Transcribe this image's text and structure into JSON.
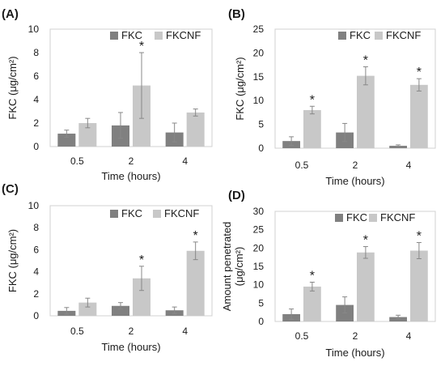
{
  "colors": {
    "FKC": "#808080",
    "FKCNF": "#c8c8c8",
    "axis": "#d0d0d0",
    "error": "#888888",
    "text": "#1a1a1a"
  },
  "chart_data": [
    {
      "panel": "(A)",
      "type": "bar",
      "categories": [
        "0.5",
        "2",
        "4"
      ],
      "series": [
        {
          "name": "FKC",
          "values": [
            1.1,
            1.8,
            1.2
          ],
          "errors": [
            0.3,
            1.1,
            0.8
          ]
        },
        {
          "name": "FKCNF",
          "values": [
            2.0,
            5.2,
            2.9
          ],
          "errors": [
            0.4,
            2.8,
            0.3
          ]
        }
      ],
      "significance": [
        "",
        "*",
        ""
      ],
      "ylabel": "FKC (μg/cm²)",
      "xlabel": "Time (hours)",
      "ylim": [
        0,
        10
      ],
      "yticks": [
        "0",
        "2",
        "4",
        "6",
        "8",
        "10"
      ],
      "legend": "top-right"
    },
    {
      "panel": "(B)",
      "type": "bar",
      "categories": [
        "0.5",
        "2",
        "4"
      ],
      "series": [
        {
          "name": "FKC",
          "values": [
            1.5,
            3.3,
            0.5
          ],
          "errors": [
            0.9,
            1.9,
            0.2
          ]
        },
        {
          "name": "FKCNF",
          "values": [
            8.0,
            15.2,
            13.3
          ],
          "errors": [
            0.8,
            1.9,
            1.3
          ]
        }
      ],
      "significance": [
        "*",
        "*",
        "*"
      ],
      "ylabel": "FKC (μg/cm²)",
      "xlabel": "Time (hours)",
      "ylim": [
        0,
        25
      ],
      "yticks": [
        "0",
        "5",
        "10",
        "15",
        "20",
        "25"
      ],
      "legend": "top-right"
    },
    {
      "panel": "(C)",
      "type": "bar",
      "categories": [
        "0.5",
        "2",
        "4"
      ],
      "series": [
        {
          "name": "FKC",
          "values": [
            0.45,
            0.9,
            0.5
          ],
          "errors": [
            0.3,
            0.3,
            0.3
          ]
        },
        {
          "name": "FKCNF",
          "values": [
            1.2,
            3.4,
            5.9
          ],
          "errors": [
            0.4,
            1.1,
            0.8
          ]
        }
      ],
      "significance": [
        "",
        "*",
        "*"
      ],
      "ylabel": "FKC (μg/cm²)",
      "xlabel": "Time (hours)",
      "ylim": [
        0,
        10
      ],
      "yticks": [
        "0",
        "2",
        "4",
        "6",
        "8",
        "10"
      ],
      "legend": "top-right"
    },
    {
      "panel": "(D)",
      "type": "bar",
      "categories": [
        "0.5",
        "2",
        "4"
      ],
      "series": [
        {
          "name": "FKC",
          "values": [
            2.0,
            4.5,
            1.2
          ],
          "errors": [
            1.4,
            2.2,
            0.5
          ]
        },
        {
          "name": "FKCNF",
          "values": [
            9.5,
            18.8,
            19.3
          ],
          "errors": [
            1.2,
            1.6,
            2.2
          ]
        }
      ],
      "significance": [
        "*",
        "*",
        "*"
      ],
      "ylabel": "Amount penetrated (μg/cm²)",
      "ylabel_lines": [
        "Amount penetrated",
        "(μg/cm²)"
      ],
      "xlabel": "Time (hours)",
      "ylim": [
        0,
        30
      ],
      "yticks": [
        "0",
        "5",
        "10",
        "15",
        "20",
        "25",
        "30"
      ],
      "legend": "top-right"
    }
  ]
}
